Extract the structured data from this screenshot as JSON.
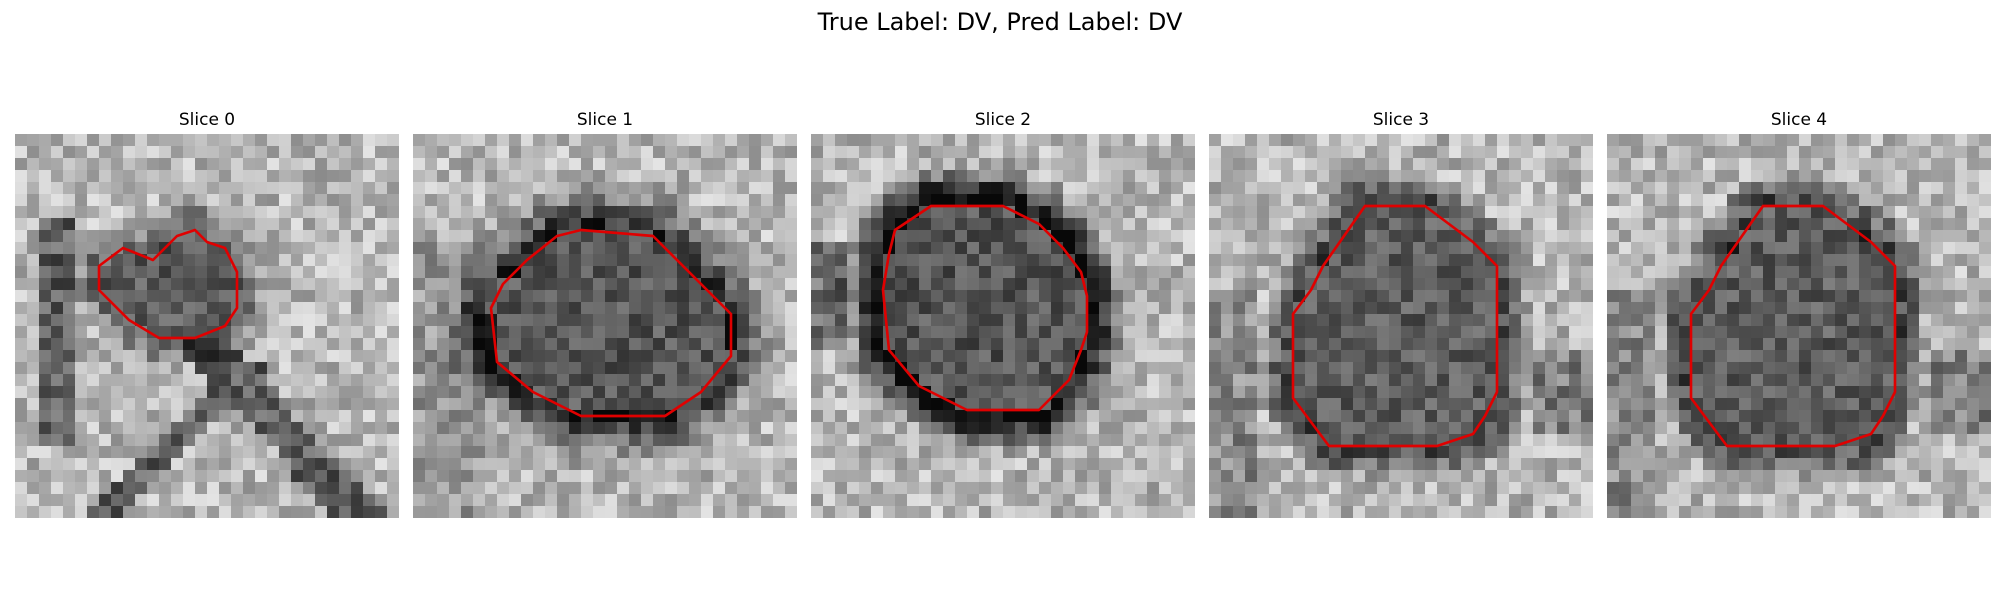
{
  "figure": {
    "title": "True Label: DV, Pred Label: DV"
  },
  "panels": [
    {
      "title": "Slice 0",
      "seed": 11,
      "image": {
        "blob_darkness": 0.24,
        "contour_scale": 0.58,
        "line_mode": "diag-branches"
      }
    },
    {
      "title": "Slice 1",
      "seed": 23,
      "image": {
        "blob_darkness": 0.28,
        "contour_scale": 0.88,
        "line_mode": "soft-ring"
      }
    },
    {
      "title": "Slice 2",
      "seed": 37,
      "image": {
        "blob_darkness": 0.3,
        "contour_scale": 0.98,
        "line_mode": "dark-rim"
      }
    },
    {
      "title": "Slice 3",
      "seed": 41,
      "image": {
        "blob_darkness": 0.22,
        "contour_scale": 1.0,
        "line_mode": "textured"
      }
    },
    {
      "title": "Slice 4",
      "seed": 53,
      "image": {
        "blob_darkness": 0.22,
        "contour_scale": 1.0,
        "line_mode": "textured"
      }
    }
  ],
  "style": {
    "contour_color": "#e00000"
  }
}
